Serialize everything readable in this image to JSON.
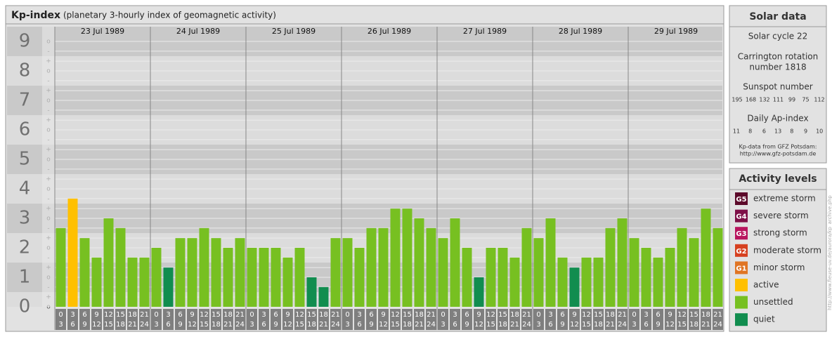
{
  "header": {
    "title": "Kp-index",
    "subtitle": "(planetary 3-hourly index of geomagnetic activity)"
  },
  "chart_data": {
    "type": "bar",
    "days": [
      "23 Jul 1989",
      "24 Jul 1989",
      "25 Jul 1989",
      "26 Jul 1989",
      "27 Jul 1989",
      "28 Jul 1989",
      "29 Jul 1989"
    ],
    "hours": [
      [
        "0",
        "3"
      ],
      [
        "3",
        "6"
      ],
      [
        "6",
        "9"
      ],
      [
        "9",
        "12"
      ],
      [
        "12",
        "15"
      ],
      [
        "15",
        "18"
      ],
      [
        "18",
        "21"
      ],
      [
        "21",
        "24"
      ]
    ],
    "values": [
      2.67,
      3.67,
      2.33,
      1.67,
      3,
      2.67,
      1.67,
      1.67,
      2,
      1.33,
      2.33,
      2.33,
      2.67,
      2.33,
      2,
      2.33,
      2,
      2,
      2,
      1.67,
      2,
      1,
      0.67,
      2.33,
      2.33,
      2,
      2.67,
      2.67,
      3.33,
      3.33,
      3,
      2.67,
      2.33,
      3,
      2,
      1,
      2,
      2,
      1.67,
      2.67,
      2.33,
      3,
      1.67,
      1.33,
      1.67,
      1.67,
      2.67,
      3,
      2.33,
      2,
      1.67,
      2,
      2.67,
      2.33,
      3.33,
      2.67
    ],
    "colors": [
      "#77c021",
      "#ffc000",
      "#77c021",
      "#77c021",
      "#77c021",
      "#77c021",
      "#77c021",
      "#77c021",
      "#77c021",
      "#118d4f",
      "#77c021",
      "#77c021",
      "#77c021",
      "#77c021",
      "#77c021",
      "#77c021",
      "#77c021",
      "#77c021",
      "#77c021",
      "#77c021",
      "#77c021",
      "#118d4f",
      "#118d4f",
      "#77c021",
      "#77c021",
      "#77c021",
      "#77c021",
      "#77c021",
      "#77c021",
      "#77c021",
      "#77c021",
      "#77c021",
      "#77c021",
      "#77c021",
      "#77c021",
      "#118d4f",
      "#77c021",
      "#77c021",
      "#77c021",
      "#77c021",
      "#77c021",
      "#77c021",
      "#77c021",
      "#118d4f",
      "#77c021",
      "#77c021",
      "#77c021",
      "#77c021",
      "#77c021",
      "#77c021",
      "#77c021",
      "#77c021",
      "#77c021",
      "#77c021",
      "#77c021",
      "#77c021"
    ],
    "ylim": [
      0,
      9.5
    ],
    "yticks": [
      0,
      1,
      2,
      3,
      4,
      5,
      6,
      7,
      8,
      9
    ],
    "minor_ticks": [
      {
        "value": 0,
        "label": "o"
      },
      {
        "value": 0.33,
        "label": "+"
      },
      {
        "value": 0.67,
        "label": "-"
      },
      {
        "value": 1,
        "label": "o"
      },
      {
        "value": 1.33,
        "label": "+"
      },
      {
        "value": 1.67,
        "label": "-"
      },
      {
        "value": 2,
        "label": "o"
      },
      {
        "value": 2.33,
        "label": "+"
      },
      {
        "value": 2.67,
        "label": "-"
      },
      {
        "value": 3,
        "label": "o"
      },
      {
        "value": 3.33,
        "label": "+"
      },
      {
        "value": 3.67,
        "label": "-"
      },
      {
        "value": 4,
        "label": "o"
      },
      {
        "value": 4.33,
        "label": "+"
      },
      {
        "value": 4.67,
        "label": "-"
      },
      {
        "value": 5,
        "label": "o"
      },
      {
        "value": 5.33,
        "label": "+"
      },
      {
        "value": 5.67,
        "label": "-"
      },
      {
        "value": 6,
        "label": "o"
      },
      {
        "value": 6.33,
        "label": "+"
      },
      {
        "value": 6.67,
        "label": "-"
      },
      {
        "value": 7,
        "label": "o"
      },
      {
        "value": 7.33,
        "label": "+"
      },
      {
        "value": 7.67,
        "label": "-"
      },
      {
        "value": 8,
        "label": "o"
      },
      {
        "value": 8.33,
        "label": "+"
      },
      {
        "value": 8.67,
        "label": "-"
      },
      {
        "value": 9,
        "label": "o"
      }
    ]
  },
  "solar": {
    "title": "Solar data",
    "cycle": "Solar cycle 22",
    "carrington": [
      "Carrington rotation",
      "number 1818"
    ],
    "sunspot_title": "Sunspot number",
    "sunspots": [
      195,
      168,
      132,
      111,
      99,
      75,
      112
    ],
    "ap_title": "Daily Ap-index",
    "ap": [
      11,
      8,
      6,
      13,
      8,
      9,
      10
    ],
    "source": [
      "Kp-data from GFZ Potsdam:",
      "http://www.gfz-potsdam.de"
    ]
  },
  "legend": {
    "title": "Activity levels",
    "items": [
      {
        "code": "G5",
        "label": "extreme storm",
        "color": "#5c0a2a"
      },
      {
        "code": "G4",
        "label": "severe storm",
        "color": "#7e1047"
      },
      {
        "code": "G3",
        "label": "strong storm",
        "color": "#b8155e"
      },
      {
        "code": "G2",
        "label": "moderate storm",
        "color": "#d6401f"
      },
      {
        "code": "G1",
        "label": "minor storm",
        "color": "#e07524"
      },
      {
        "label": "active",
        "color": "#ffc000"
      },
      {
        "label": "unsettled",
        "color": "#77c021"
      },
      {
        "label": "quiet",
        "color": "#118d4f"
      }
    ]
  },
  "credit": "http://www.fieuse-uv.de/aurora/kp_archive.php"
}
